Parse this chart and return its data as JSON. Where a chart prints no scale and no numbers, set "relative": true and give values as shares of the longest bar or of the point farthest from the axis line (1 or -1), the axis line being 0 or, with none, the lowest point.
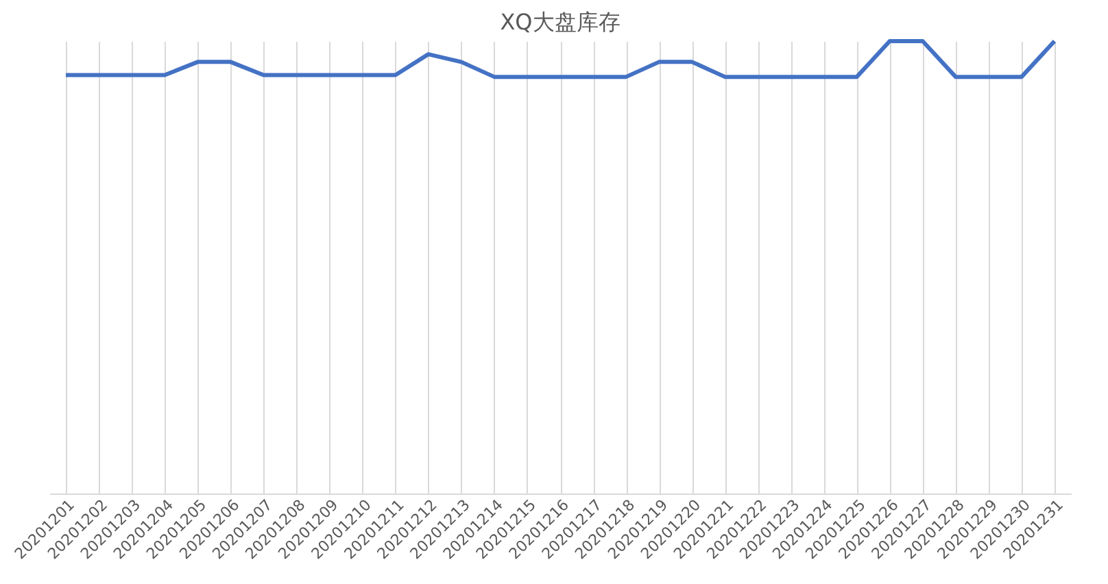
{
  "chart_data": {
    "type": "line",
    "title": "XQ大盘库存",
    "relative": true,
    "grid": "x",
    "marker": "none",
    "line_style": "solid",
    "categories": [
      "20201201",
      "20201202",
      "20201203",
      "20201204",
      "20201205",
      "20201206",
      "20201207",
      "20201208",
      "20201209",
      "20201210",
      "20201211",
      "20201212",
      "20201213",
      "20201214",
      "20201215",
      "20201216",
      "20201217",
      "20201218",
      "20201219",
      "20201220",
      "20201221",
      "20201222",
      "20201223",
      "20201224",
      "20201225",
      "20201226",
      "20201227",
      "20201228",
      "20201229",
      "20201230",
      "20201231"
    ],
    "series": [
      {
        "color": "#4472c4",
        "values": [
          0.925,
          0.925,
          0.925,
          0.925,
          0.954,
          0.954,
          0.925,
          0.925,
          0.925,
          0.925,
          0.925,
          0.971,
          0.954,
          0.921,
          0.921,
          0.921,
          0.921,
          0.921,
          0.954,
          0.954,
          0.921,
          0.921,
          0.921,
          0.921,
          0.921,
          1,
          1,
          0.921,
          0.921,
          0.921,
          1
        ]
      }
    ]
  }
}
